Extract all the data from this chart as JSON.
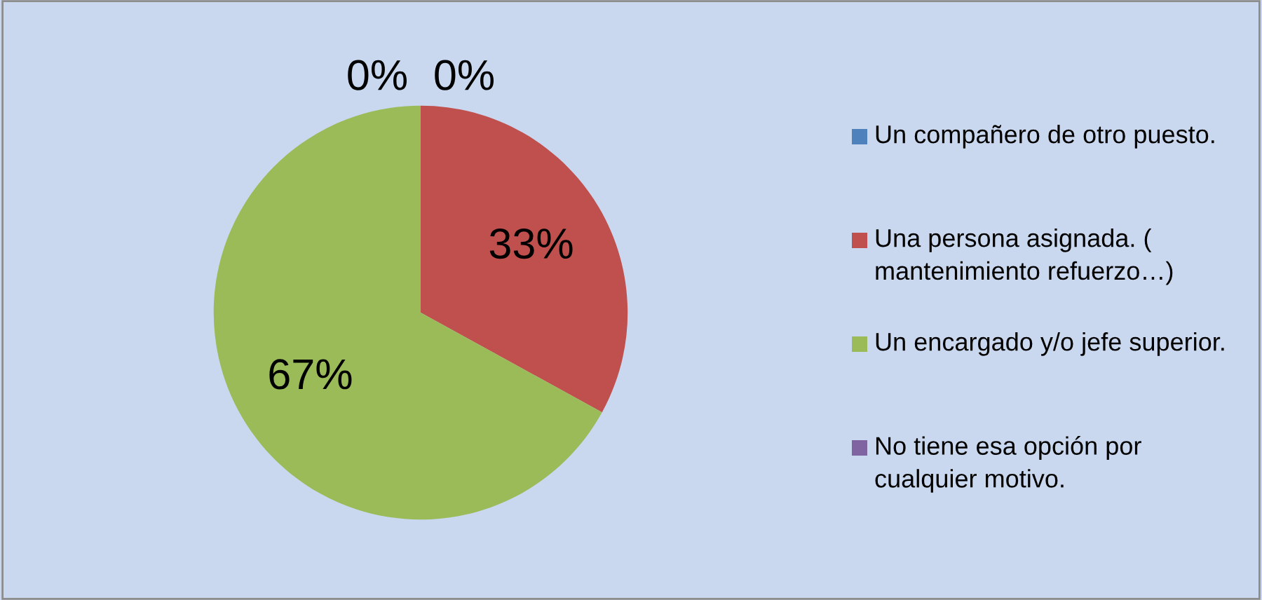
{
  "chart_data": {
    "type": "pie",
    "categories": [
      "Un compañero de otro puesto.",
      "Una persona asignada. ( mantenimiento refuerzo…)",
      "Un encargado y/o jefe superior.",
      "No tiene esa opción por cualquier motivo."
    ],
    "values": [
      0,
      33,
      67,
      0
    ],
    "colors": [
      "#4f81bd",
      "#c0504d",
      "#9bbb59",
      "#8064a2"
    ],
    "value_labels": [
      "0%",
      "33%",
      "67%",
      "0%"
    ],
    "legend": "right"
  }
}
